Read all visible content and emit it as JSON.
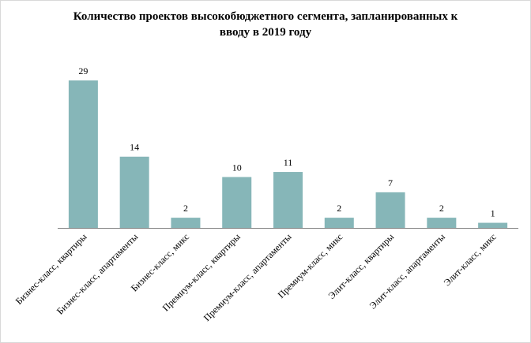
{
  "chart_data": {
    "type": "bar",
    "title_lines": [
      "Количество проектов высокобюджетного сегмента, запланированных к",
      "вводу в 2019 году"
    ],
    "categories": [
      "Бизнес-класс, квартиры",
      "Бизнес-класс, апартаменты",
      "Бизнес-класс, микс",
      "Премиум-класс, квартиры",
      "Премиум-класс, апартаменты",
      "Премиум-класс, микс",
      "Элит-класс, квартиры",
      "Элит-класс, апартаменты",
      "Элит-класс, микс"
    ],
    "values": [
      29,
      14,
      2,
      10,
      11,
      2,
      7,
      2,
      1
    ],
    "ylim": [
      0,
      29
    ],
    "bar_color": "#86b6b8",
    "grid": false,
    "legend": "none"
  }
}
